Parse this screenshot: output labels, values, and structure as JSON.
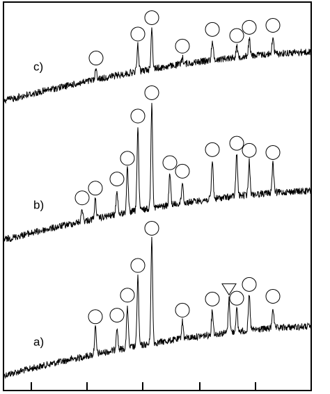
{
  "labels": [
    "a)",
    "b)",
    "c)"
  ]
}
